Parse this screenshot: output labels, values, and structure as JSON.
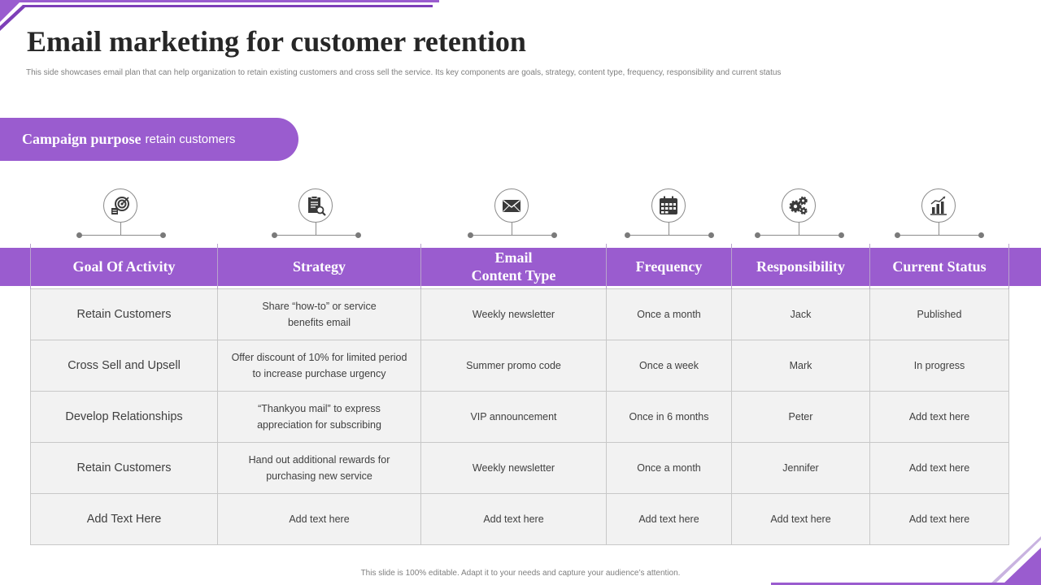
{
  "title": "Email marketing for customer retention",
  "subtitle": "This side showcases email plan that can help organization to retain existing customers and cross sell the service. Its key components are goals, strategy, content type, frequency, responsibility and current status",
  "campaign": {
    "label": "Campaign purpose",
    "value": "retain customers"
  },
  "icons": [
    "target-icon",
    "document-search-icon",
    "envelope-icon",
    "calendar-icon",
    "gears-icon",
    "bar-chart-icon"
  ],
  "table": {
    "headers": [
      "Goal Of Activity",
      "Strategy",
      "Email\nContent Type",
      "Frequency",
      "Responsibility",
      "Current Status"
    ],
    "rows": [
      [
        "Retain Customers",
        "Share “how-to” or service benefits email",
        "Weekly newsletter",
        "Once a month",
        "Jack",
        "Published"
      ],
      [
        "Cross Sell and Upsell",
        "Offer discount of 10% for limited period to increase purchase urgency",
        "Summer promo code",
        "Once a week",
        "Mark",
        "In progress"
      ],
      [
        "Develop Relationships",
        "“Thankyou mail” to express appreciation for subscribing",
        "VIP announcement",
        "Once in 6 months",
        "Peter",
        "Add text here"
      ],
      [
        "Retain Customers",
        "Hand out additional rewards for purchasing new service",
        "Weekly newsletter",
        "Once a month",
        "Jennifer",
        "Add text here"
      ],
      [
        "Add Text Here",
        "Add text here",
        "Add text here",
        "Add text here",
        "Add text here",
        "Add text here"
      ]
    ]
  },
  "footer": "This slide is 100% editable. Adapt it to your needs and capture your audience’s attention.",
  "colors": {
    "accent": "#9a5ccf",
    "cell_bg": "#f2f2f2",
    "border": "#c8c8c8"
  }
}
